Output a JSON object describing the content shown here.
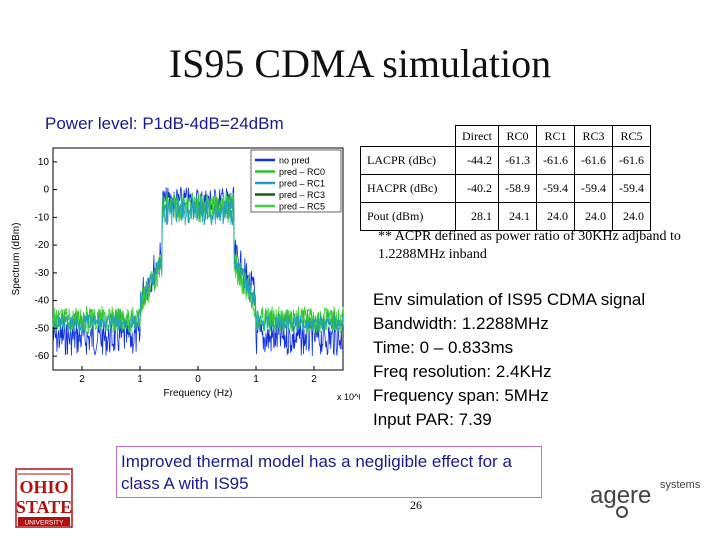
{
  "title": "IS95 CDMA simulation",
  "power_level": "Power level: P1dB-4dB=24dBm",
  "table": {
    "columns": [
      "Direct",
      "RC0",
      "RC1",
      "RC3",
      "RC5"
    ],
    "rows": [
      {
        "label": "LACPR (dBc)",
        "values": [
          "-44.2",
          "-61.3",
          "-61.6",
          "-61.6",
          "-61.6"
        ]
      },
      {
        "label": "HACPR (dBc)",
        "values": [
          "-40.2",
          "-58.9",
          "-59.4",
          "-59.4",
          "-59.4"
        ]
      },
      {
        "label": "Pout (dBm)",
        "values": [
          "28.1",
          "24.1",
          "24.0",
          "24.0",
          "24.0"
        ]
      }
    ]
  },
  "note": "** ACPR defined as power ratio of 30KHz adjband to 1.2288MHz inband",
  "simulation": [
    "Env simulation of IS95 CDMA signal",
    "Bandwidth: 1.2288MHz",
    "Time: 0 – 0.833ms",
    "Freq resolution: 2.4KHz",
    "Frequency span: 5MHz",
    "Input PAR: 7.39"
  ],
  "conclusion": "Improved thermal model has a negligible effect for a class A with IS95",
  "page_number": "26",
  "logos": {
    "osu": {
      "line1": "OHIO",
      "line2": "STATE",
      "line3": "UNIVERSITY",
      "color": "#b01010"
    },
    "agere": {
      "name": "agere",
      "sub": "systems"
    }
  },
  "chart_data": {
    "type": "line",
    "xlabel": "Frequency (Hz)",
    "ylabel": "Spectrum (dBm)",
    "x_exponent": "x 10^6",
    "xlim": [
      -2.5,
      2.5
    ],
    "ylim": [
      -65,
      15
    ],
    "x_ticks": [
      "2",
      "1",
      "0",
      "1",
      "2"
    ],
    "y_ticks": [
      "10",
      "0",
      "-10",
      "-20",
      "-30",
      "-40",
      "-50",
      "-60"
    ],
    "legend_position": "top-right",
    "series": [
      {
        "name": "no pred",
        "color": "#1030e0"
      },
      {
        "name": "pred – RC0",
        "color": "#30c030"
      },
      {
        "name": "pred – RC1",
        "color": "#20a0c0"
      },
      {
        "name": "pred – RC3",
        "color": "#106010"
      },
      {
        "name": "pred – RC5",
        "color": "#40d040"
      }
    ]
  }
}
